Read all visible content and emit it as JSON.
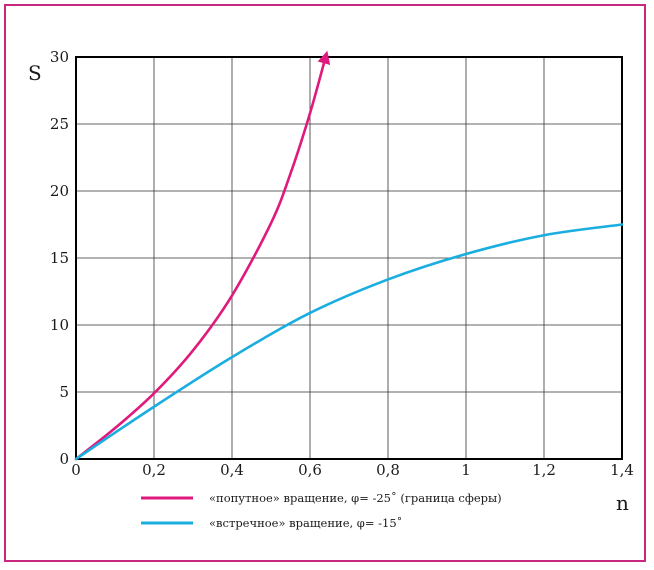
{
  "chart_data": {
    "type": "line",
    "title": "",
    "xlabel": "n",
    "ylabel": "S",
    "xlim": [
      0,
      1.4
    ],
    "ylim": [
      0,
      30
    ],
    "grid": true,
    "legend_position": "bottom-left",
    "x_ticks": [
      {
        "value": 0,
        "label": "0"
      },
      {
        "value": 0.2,
        "label": "0,2"
      },
      {
        "value": 0.4,
        "label": "0,4"
      },
      {
        "value": 0.6,
        "label": "0,6"
      },
      {
        "value": 0.8,
        "label": "0,8"
      },
      {
        "value": 1.0,
        "label": "1"
      },
      {
        "value": 1.2,
        "label": "1,2"
      },
      {
        "value": 1.4,
        "label": "1,4"
      }
    ],
    "y_ticks": [
      {
        "value": 0,
        "label": "0"
      },
      {
        "value": 5,
        "label": "5"
      },
      {
        "value": 10,
        "label": "10"
      },
      {
        "value": 15,
        "label": "15"
      },
      {
        "value": 20,
        "label": "20"
      },
      {
        "value": 25,
        "label": "25"
      },
      {
        "value": 30,
        "label": "30"
      }
    ],
    "series": [
      {
        "name": "«попутное» вращение, φ= -25˚ (граница сферы)",
        "color": "#e0197d",
        "arrow_end": true,
        "x": [
          0,
          0.1,
          0.2,
          0.3,
          0.4,
          0.5,
          0.55,
          0.6,
          0.64
        ],
        "y": [
          0,
          2.3,
          4.9,
          8.1,
          12.2,
          17.6,
          21.3,
          25.8,
          30
        ]
      },
      {
        "name": "«встречное» вращение, φ= -15˚",
        "color": "#1aaee0",
        "arrow_end": false,
        "x": [
          0,
          0.2,
          0.4,
          0.6,
          0.8,
          1.0,
          1.2,
          1.4
        ],
        "y": [
          0,
          3.9,
          7.6,
          10.9,
          13.4,
          15.3,
          16.7,
          17.5
        ]
      }
    ]
  }
}
